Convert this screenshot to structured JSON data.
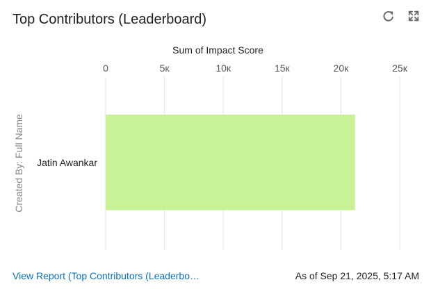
{
  "header": {
    "title": "Top Contributors (Leaderboard)",
    "refresh_icon": "refresh-icon",
    "expand_icon": "expand-icon"
  },
  "chart_data": {
    "type": "bar",
    "orientation": "horizontal",
    "title": "Sum of Impact Score",
    "ylabel": "Created By: Full Name",
    "categories": [
      "Jatin Awankar"
    ],
    "values": [
      21200
    ],
    "xlim": [
      0,
      25000
    ],
    "x_ticks": [
      0,
      5000,
      10000,
      15000,
      20000,
      25000
    ],
    "x_tick_labels": [
      "0",
      "5к",
      "10к",
      "15к",
      "20к",
      "25к"
    ],
    "grid": true,
    "bar_color": "#c8f296"
  },
  "footer": {
    "report_link": "View Report (Top Contributors (Leaderbo…",
    "as_of": "As of Sep 21, 2025, 5:17 AM"
  }
}
